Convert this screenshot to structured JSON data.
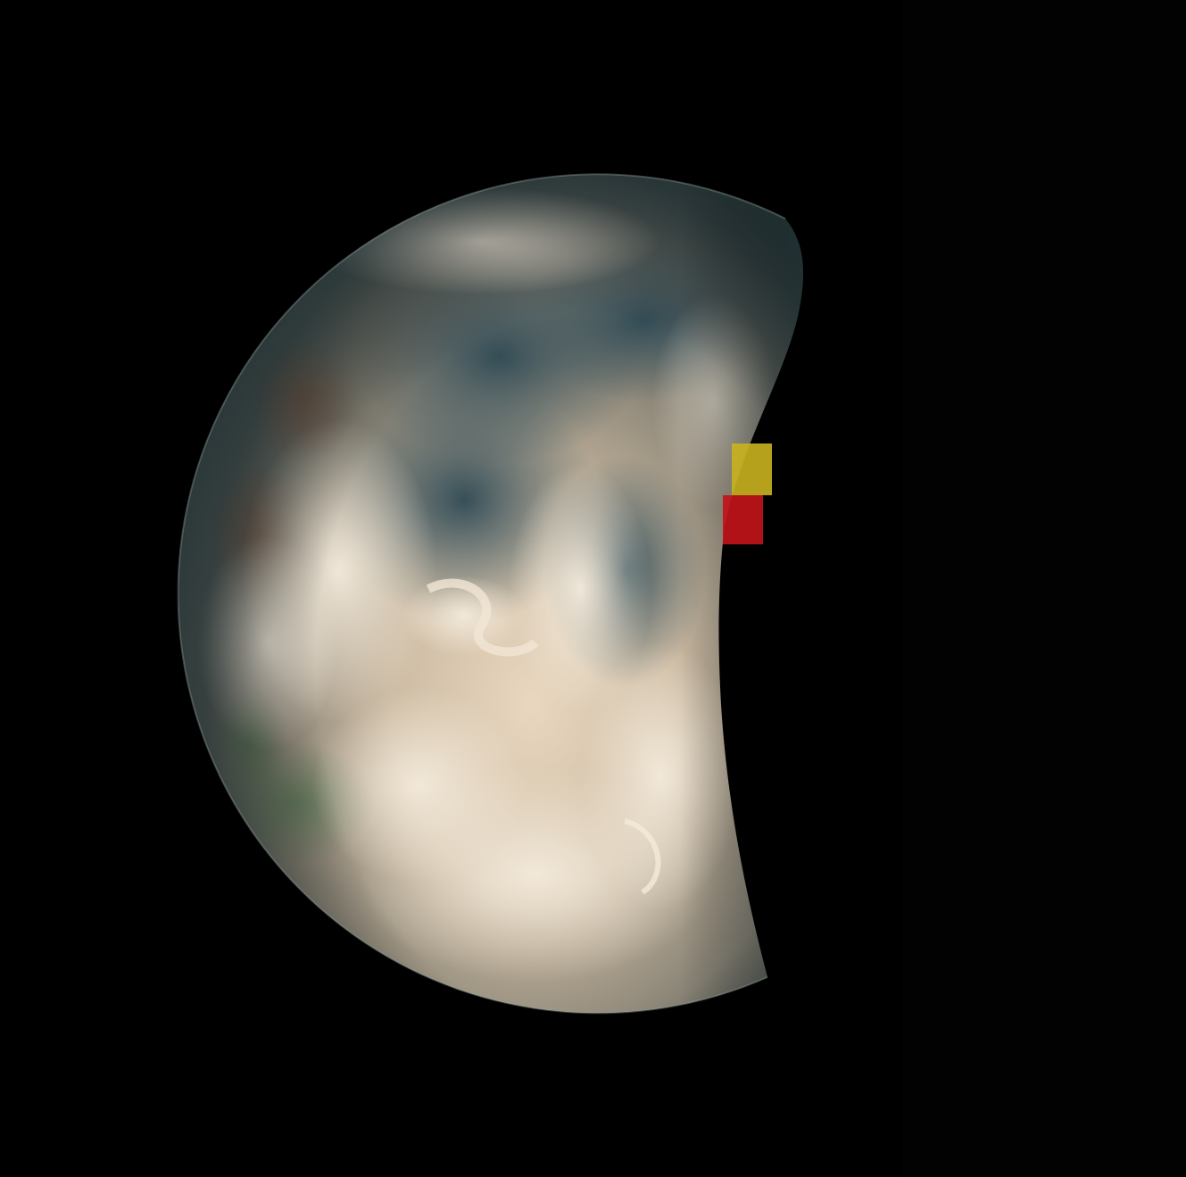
{
  "image": {
    "subject": "crescent-earth",
    "background_color": "#000000",
    "colors": {
      "ocean": "#3d5560",
      "cloud": "#e8dccb",
      "land": "#7a6a55",
      "glare": "#f3e6d2",
      "artifact_yellow": "#c9b21e",
      "artifact_red": "#c0141a"
    }
  }
}
